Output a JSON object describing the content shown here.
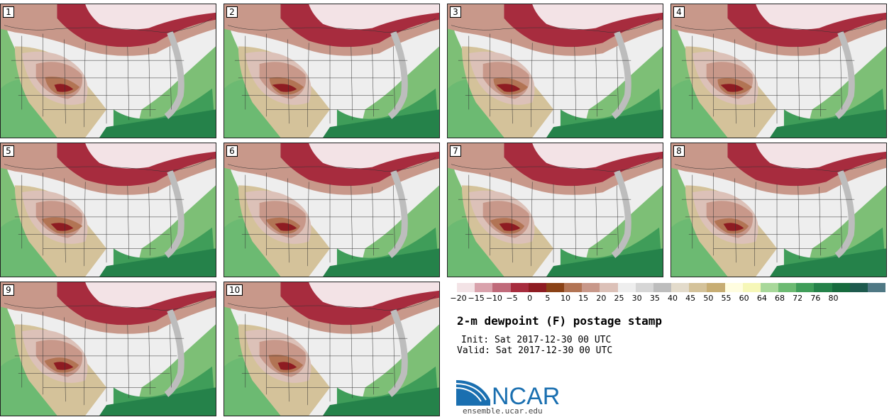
{
  "panels": [
    {
      "id": "1"
    },
    {
      "id": "2"
    },
    {
      "id": "3"
    },
    {
      "id": "4"
    },
    {
      "id": "5"
    },
    {
      "id": "6"
    },
    {
      "id": "7"
    },
    {
      "id": "8"
    },
    {
      "id": "9"
    },
    {
      "id": "10"
    }
  ],
  "colorbar": {
    "colors": [
      "#f3e3e6",
      "#d9a2ac",
      "#c06a7a",
      "#a72c3e",
      "#8e1c22",
      "#8a4216",
      "#b27454",
      "#c8988a",
      "#dcc1b8",
      "#eeeeee",
      "#d6d6d6",
      "#bdbdbd",
      "#e3dbcb",
      "#d4c29a",
      "#c7ad73",
      "#fffde0",
      "#f6f7b8",
      "#a8d89a",
      "#6cba72",
      "#3f9d59",
      "#25824a",
      "#176b3e",
      "#1e5a4e",
      "#4f7884"
    ],
    "ticks": [
      "−20",
      "−15",
      "−10",
      "−5",
      "0",
      "5",
      "10",
      "15",
      "20",
      "25",
      "30",
      "35",
      "40",
      "45",
      "50",
      "55",
      "60",
      "64",
      "68",
      "72",
      "76",
      "80"
    ]
  },
  "title": "2-m dewpoint (F) postage stamp",
  "init": "Init: Sat 2017-12-30 00 UTC",
  "valid": "Valid: Sat 2017-12-30 00 UTC",
  "logo": {
    "text": "NCAR",
    "color": "#1a6fb0"
  },
  "website": "ensemble.ucar.edu"
}
